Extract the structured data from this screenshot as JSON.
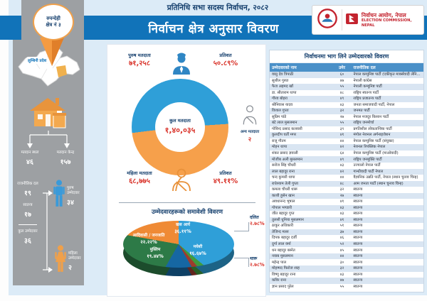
{
  "header": {
    "subtitle": "प्रतिनिधि सभा सदस्य निर्वाचन, २०८२",
    "title": "निर्वाचन क्षेत्र अनुसार विवरण",
    "badge": {
      "line1": "रुपन्देही",
      "line2": "क्षेत्र नं ३"
    },
    "commission": {
      "name_np": "निर्वाचन आयोग, नेपाल",
      "name_en": "ELECTION COMMISSION, NEPAL"
    }
  },
  "sidebar": {
    "province_label": "लुम्बिनी प्रदेश",
    "polling_place": {
      "label": "मतदान स्थल",
      "value": "४६"
    },
    "polling_center": {
      "label": "मतदान केन्द्र",
      "value": "१५७"
    },
    "political_parties": {
      "label": "राजनीतिक दल",
      "value": "१९"
    },
    "independent": {
      "label": "स्वतन्त्र",
      "value": "१७"
    },
    "total_candidates": {
      "label": "कुल उम्मेदवार",
      "value": "३६"
    },
    "male_candidates": {
      "label": "पुरुष उम्मेदवार",
      "value": "३४"
    },
    "female_candidates": {
      "label": "महिला उम्मेदवार",
      "value": "२"
    }
  },
  "voters": {
    "male": {
      "label": "पुरुष मतदाता",
      "value": "७१,२५८",
      "pct_label": "प्रतिशत",
      "pct": "५०.८९%"
    },
    "female": {
      "label": "महिला मतदाता",
      "value": "६८,७७५",
      "pct_label": "प्रतिशत",
      "pct": "४९.११%"
    },
    "other": {
      "label": "अन्य मतदाता",
      "value": "२"
    },
    "total": {
      "label": "कुल मतदाता",
      "value": "१,४०,०३५"
    }
  },
  "inclusive_title": "उम्मेदवारहरूको समावेशी विवरण",
  "chart_data": [
    {
      "type": "pie",
      "variant": "donut",
      "title": "कुल मतदाता",
      "total_value": 140035,
      "total_value_text": "१,४०,०३५",
      "slices": [
        {
          "name": "पुरुष मतदाता",
          "value": 71258,
          "value_text": "७१,२५८",
          "pct": 50.89,
          "pct_text": "५०.८९%",
          "color": "#2f9fd8"
        },
        {
          "name": "महिला मतदाता",
          "value": 68775,
          "value_text": "६८,७७५",
          "pct": 49.11,
          "pct_text": "४९.११%",
          "color": "#f6a04b"
        },
        {
          "name": "अन्य मतदाता",
          "value": 2,
          "value_text": "२",
          "pct": 0.0,
          "pct_text": "",
          "color": "#c9ced4"
        }
      ]
    },
    {
      "type": "pie",
      "variant": "3d-pie",
      "title": "उम्मेदवारहरूको समावेशी विवरण",
      "slices": [
        {
          "name": "खस आर्य",
          "pct": 36.11,
          "pct_text": "३६.११%",
          "color": "#2f9fd8"
        },
        {
          "name": "दलित",
          "pct": 2.78,
          "pct_text": "२.७८%",
          "color": "#3f9b3f"
        },
        {
          "name": "थारू",
          "pct": 2.78,
          "pct_text": "२.७८%",
          "color": "#9e3b2e"
        },
        {
          "name": "मधेशी",
          "pct": 16.67,
          "pct_text": "१६.६७%",
          "color": "#1667a3"
        },
        {
          "name": "मुस्लिम",
          "pct": 19.44,
          "pct_text": "१९.४४%",
          "color": "#2d7a47"
        },
        {
          "name": "आदिवासी / जनजाति",
          "pct": 22.22,
          "pct_text": "२२.२२%",
          "color": "#ef8a35"
        }
      ]
    }
  ],
  "table": {
    "title": "निर्वाचनमा भाग लिने उम्मेदवारको विवरण",
    "columns": [
      "उम्मेदवारको नाम",
      "उमेर",
      "राजनीतिक दल"
    ],
    "rows": [
      [
        "वासु देव त्रिपाठी",
        "६०",
        "नेपाल कम्युनिष्ट पार्टी (एकीकृत मार्क्सवादी लेनिनवादी)"
      ],
      [
        "सुशील गुरुङ",
        "४७",
        "नेपाली कांग्रेस"
      ],
      [
        "फैज अहमद खाँ",
        "५५",
        "नेपाली कम्युनिष्ट पार्टी"
      ],
      [
        "डा. सीताराम थापा",
        "४८",
        "राष्ट्रिय स्वतन्त्र पार्टी"
      ],
      [
        "गौरव बोहरा",
        "४९",
        "राष्ट्रिय प्रजातन्त्र पार्टी"
      ],
      [
        "श्रीनिवास यादव",
        "४३",
        "जनता समाजवादी पार्टी, नेपाल"
      ],
      [
        "विशाल गुप्ता",
        "३२",
        "जनमत पार्टी"
      ],
      [
        "सुप्रिम पांडे",
        "२७",
        "नेपाल मजदुर किसान पार्टी"
      ],
      [
        "बंटे लाल मुसलमान",
        "५५",
        "राष्ट्रिय जनमोर्चा"
      ],
      [
        "गोविन्द प्रसाद कलवारी",
        "३९",
        "प्रगतिशील लोकतान्त्रिक पार्टी"
      ],
      [
        "कुलदीप घर्ती मगर",
        "४१",
        "मंगोल नेशनल अर्गनाइजेशन"
      ],
      [
        "राजु गौतम",
        "४४",
        "नेपाल कम्युनिष्ट पार्टी (संयुक्त)"
      ],
      [
        "मोहन थापा",
        "४२",
        "नेशनल रिपब्लिक नेपाल"
      ],
      [
        "शंकर प्रसाद ज्ञवाली",
        "६४",
        "नेपाल कम्युनिष्ट पार्टी (माओवादी)"
      ],
      [
        "मोजीब अली मुसलमान",
        "४९",
        "राष्ट्रिय जनमुक्ति पार्टी"
      ],
      [
        "सरोज सिंह चौधरी",
        "४३",
        "उज्यालो नेपाल पार्टी"
      ],
      [
        "लाल बहादुर राना",
        "४२",
        "गान्धीवादी पार्टी नेपाल"
      ],
      [
        "चन्द कुमारी थापा",
        "४४",
        "वैज्ञानिक उन्नति पार्टी, नेपाल (स्थान चुनाव चिन्ह)"
      ],
      [
        "राधेश्याम तेली गुप्ता",
        "४८",
        "आम जनता पार्टी (स्थान चुनाव चिन्ह)"
      ],
      [
        "कमला चौधरी थारू",
        "३२",
        "स्वतन्त्र"
      ],
      [
        "काशी हुसेन खान",
        "२७",
        "स्वतन्त्र"
      ],
      [
        "अवधानन्द भूषाल",
        "४१",
        "स्वतन्त्र"
      ],
      [
        "गोपाल भण्डारी",
        "४३",
        "स्वतन्त्र"
      ],
      [
        "जीत बहादुर गुप्त",
        "४३",
        "स्वतन्त्र"
      ],
      [
        "तुलसी धुनिया मुसलमान",
        "४१",
        "स्वतन्त्र"
      ],
      [
        "ठाकुर अधिकारी",
        "५१",
        "स्वतन्त्र"
      ],
      [
        "तेजिन्द मल्ल",
        "३७",
        "स्वतन्त्र"
      ],
      [
        "दिपक बहादुर दर्जी",
        "४६",
        "स्वतन्त्र"
      ],
      [
        "दुर्गा लाल वर्मा",
        "५२",
        "स्वतन्त्र"
      ],
      [
        "धन बहादुर बस्नेत",
        "४५",
        "स्वतन्त्र"
      ],
      [
        "नवाब मुसलमान",
        "४४",
        "स्वतन्त्र"
      ],
      [
        "महेन्द्र पाल",
        "३०",
        "स्वतन्त्र"
      ],
      [
        "मोहम्मद फिरोज शाह",
        "३२",
        "स्वतन्त्र"
      ],
      [
        "विष्णु बहादुर राना",
        "४३",
        "स्वतन्त्र"
      ],
      [
        "कविर राना",
        "४७",
        "स्वतन्त्र"
      ],
      [
        "ज्ञान प्रसाद पुरेल",
        "५५",
        "स्वतन्त्र"
      ]
    ]
  },
  "colors": {
    "band_blue": "#1173b9",
    "page_blue": "#dcebf7",
    "panel_grey": "#9da0a3",
    "navy_text": "#16406e",
    "red_value": "#d9342b",
    "commission_red": "#c3232e",
    "table_header": "#4a90c8",
    "row_alt": "#d9e5f2"
  }
}
